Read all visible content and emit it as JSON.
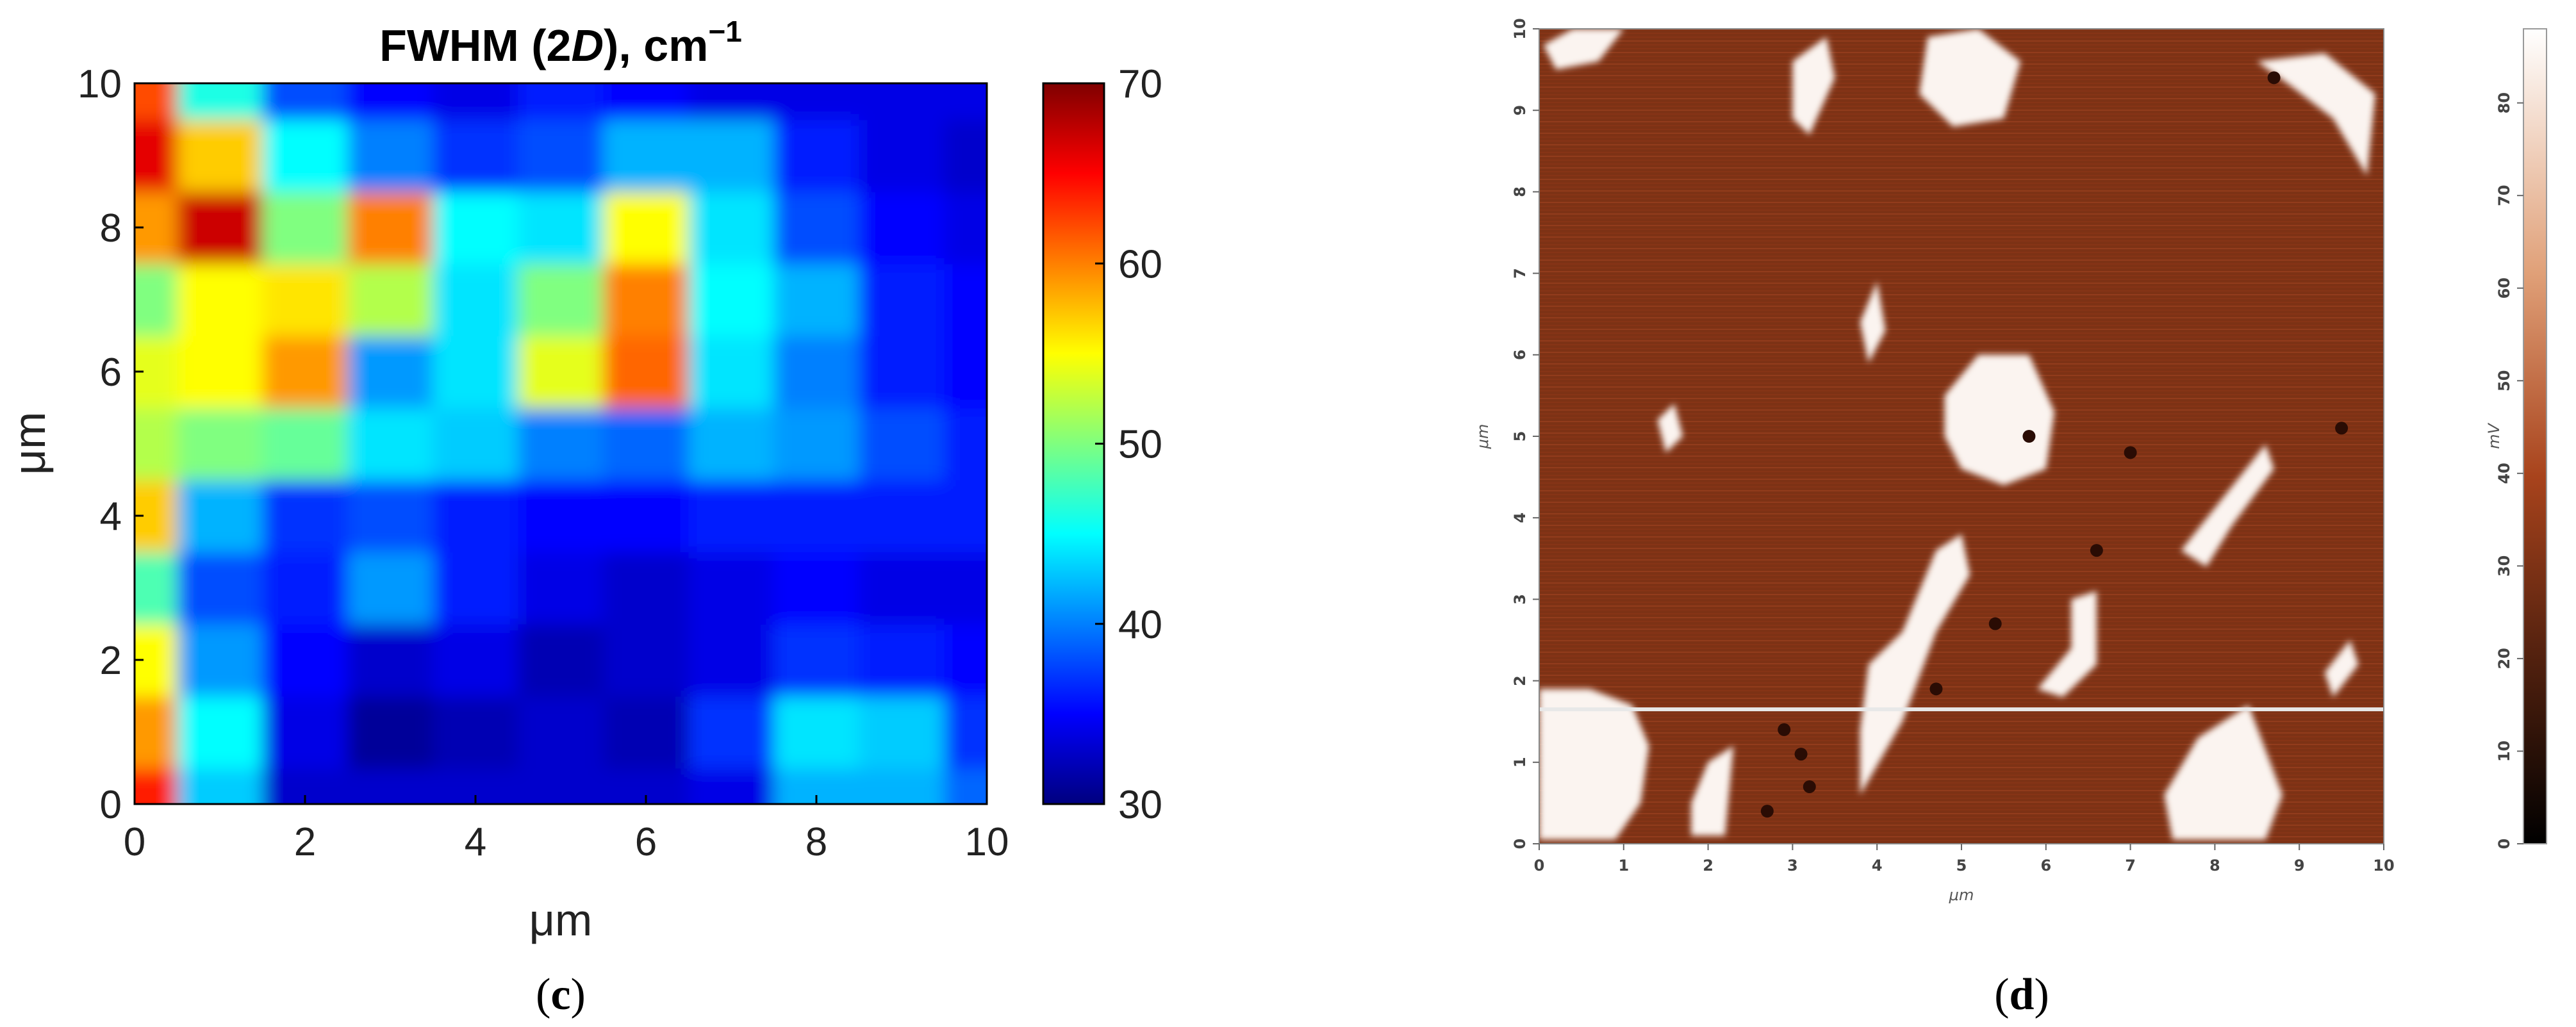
{
  "chart_data": [
    {
      "type": "heatmap",
      "panel": "c",
      "title": "FWHM (2D), cm",
      "title_superscript": "−1",
      "title_parts": {
        "prefix": "FWHM (2",
        "italic": "D",
        "suffix": "), cm",
        "sup": "−1"
      },
      "xlabel": "μm",
      "ylabel": "μm",
      "xlim": [
        0,
        10
      ],
      "ylim": [
        0,
        10
      ],
      "xticks": [
        "0",
        "2",
        "4",
        "6",
        "8",
        "10"
      ],
      "yticks": [
        "0",
        "2",
        "4",
        "6",
        "8",
        "10"
      ],
      "colorbar": {
        "min": 30,
        "max": 70,
        "ticks": [
          "30",
          "40",
          "50",
          "60",
          "70"
        ],
        "colormap": "jet"
      },
      "grid_x": [
        0,
        1,
        2,
        3,
        4,
        5,
        6,
        7,
        8,
        9,
        10
      ],
      "grid_y": [
        0,
        1,
        2,
        3,
        4,
        5,
        6,
        7,
        8,
        9,
        10
      ],
      "z": [
        [
          64,
          43,
          33,
          33,
          33,
          33,
          33,
          34,
          42,
          42,
          39
        ],
        [
          59,
          45,
          34,
          31,
          32,
          33,
          32,
          37,
          44,
          43,
          37
        ],
        [
          55,
          41,
          35,
          33,
          34,
          32,
          33,
          34,
          37,
          36,
          35
        ],
        [
          48,
          38,
          36,
          41,
          36,
          34,
          33,
          34,
          35,
          34,
          34
        ],
        [
          57,
          42,
          37,
          38,
          36,
          35,
          35,
          36,
          36,
          36,
          36
        ],
        [
          52,
          50,
          49,
          44,
          43,
          40,
          39,
          42,
          41,
          38,
          36
        ],
        [
          54,
          55,
          59,
          41,
          44,
          54,
          61,
          44,
          40,
          36,
          35
        ],
        [
          50,
          55,
          56,
          52,
          44,
          50,
          60,
          45,
          42,
          36,
          35
        ],
        [
          59,
          67,
          50,
          60,
          45,
          44,
          55,
          44,
          38,
          35,
          34
        ],
        [
          66,
          57,
          45,
          40,
          37,
          38,
          42,
          42,
          36,
          34,
          33
        ],
        [
          62,
          46,
          38,
          35,
          34,
          36,
          35,
          34,
          34,
          34,
          34
        ]
      ]
    },
    {
      "type": "heatmap",
      "panel": "d",
      "title": "",
      "xlabel": "μm",
      "ylabel": "μm",
      "xlim": [
        0,
        10
      ],
      "ylim": [
        0,
        10
      ],
      "xticks": [
        "0",
        "1",
        "2",
        "3",
        "4",
        "5",
        "6",
        "7",
        "8",
        "9",
        "10"
      ],
      "yticks": [
        "0",
        "1",
        "2",
        "3",
        "4",
        "5",
        "6",
        "7",
        "8",
        "9",
        "10"
      ],
      "colorbar": {
        "min": 0,
        "max": 88,
        "ticks": [
          "0",
          "10",
          "20",
          "30",
          "40",
          "50",
          "60",
          "70",
          "80"
        ],
        "label": "mV",
        "colormap": "copper"
      },
      "background_mV": 30,
      "scan_line_y": 1.65,
      "regions": [
        {
          "shape": "blob",
          "value_mV": 85,
          "points": [
            [
              0,
              1.9
            ],
            [
              0.6,
              1.9
            ],
            [
              1.1,
              1.7
            ],
            [
              1.3,
              1.2
            ],
            [
              1.2,
              0.5
            ],
            [
              0.9,
              0.05
            ],
            [
              0,
              0.05
            ]
          ]
        },
        {
          "shape": "blob",
          "value_mV": 85,
          "points": [
            [
              3.8,
              0.6
            ],
            [
              4.3,
              1.5
            ],
            [
              4.7,
              2.6
            ],
            [
              5.1,
              3.3
            ],
            [
              5.0,
              3.8
            ],
            [
              4.7,
              3.6
            ],
            [
              4.3,
              2.6
            ],
            [
              3.9,
              2.2
            ],
            [
              3.8,
              1.4
            ]
          ]
        },
        {
          "shape": "blob",
          "value_mV": 85,
          "points": [
            [
              4.8,
              5.5
            ],
            [
              5.2,
              6.0
            ],
            [
              5.8,
              6.0
            ],
            [
              6.1,
              5.3
            ],
            [
              6.0,
              4.6
            ],
            [
              5.5,
              4.4
            ],
            [
              5.0,
              4.6
            ],
            [
              4.8,
              5.0
            ]
          ]
        },
        {
          "shape": "blob",
          "value_mV": 85,
          "points": [
            [
              4.6,
              9.9
            ],
            [
              5.2,
              10.0
            ],
            [
              5.7,
              9.6
            ],
            [
              5.5,
              8.9
            ],
            [
              4.9,
              8.8
            ],
            [
              4.5,
              9.2
            ]
          ]
        },
        {
          "shape": "blob",
          "value_mV": 85,
          "points": [
            [
              7.5,
              0.05
            ],
            [
              8.6,
              0.05
            ],
            [
              8.8,
              0.6
            ],
            [
              8.4,
              1.7
            ],
            [
              7.8,
              1.3
            ],
            [
              7.4,
              0.6
            ]
          ]
        },
        {
          "shape": "blob",
          "value_mV": 85,
          "points": [
            [
              7.6,
              3.6
            ],
            [
              8.6,
              4.9
            ],
            [
              8.7,
              4.6
            ],
            [
              8.2,
              3.9
            ],
            [
              7.9,
              3.4
            ]
          ]
        },
        {
          "shape": "blob",
          "value_mV": 85,
          "points": [
            [
              3.0,
              9.6
            ],
            [
              3.4,
              9.9
            ],
            [
              3.5,
              9.4
            ],
            [
              3.2,
              8.7
            ],
            [
              3.0,
              8.9
            ]
          ]
        },
        {
          "shape": "blob",
          "value_mV": 85,
          "points": [
            [
              3.8,
              6.4
            ],
            [
              4.0,
              6.9
            ],
            [
              4.1,
              6.3
            ],
            [
              3.9,
              5.9
            ]
          ]
        },
        {
          "shape": "blob",
          "value_mV": 85,
          "points": [
            [
              1.4,
              5.2
            ],
            [
              1.6,
              5.4
            ],
            [
              1.7,
              5.0
            ],
            [
              1.5,
              4.8
            ]
          ]
        },
        {
          "shape": "blob",
          "value_mV": 85,
          "points": [
            [
              1.8,
              0.1
            ],
            [
              2.2,
              0.1
            ],
            [
              2.3,
              1.2
            ],
            [
              2.0,
              1.0
            ],
            [
              1.8,
              0.5
            ]
          ]
        },
        {
          "shape": "blob",
          "value_mV": 85,
          "points": [
            [
              8.5,
              9.6
            ],
            [
              9.3,
              9.7
            ],
            [
              9.9,
              9.2
            ],
            [
              9.8,
              8.2
            ],
            [
              9.4,
              8.9
            ],
            [
              8.9,
              9.3
            ]
          ]
        },
        {
          "shape": "blob",
          "value_mV": 85,
          "points": [
            [
              0.05,
              9.8
            ],
            [
              0.4,
              10.0
            ],
            [
              1.0,
              10.0
            ],
            [
              0.7,
              9.6
            ],
            [
              0.2,
              9.5
            ]
          ]
        },
        {
          "shape": "blob",
          "value_mV": 85,
          "points": [
            [
              9.3,
              2.1
            ],
            [
              9.6,
              2.5
            ],
            [
              9.7,
              2.2
            ],
            [
              9.4,
              1.8
            ]
          ]
        },
        {
          "shape": "blob",
          "value_mV": 85,
          "points": [
            [
              6.3,
              3.0
            ],
            [
              6.6,
              3.1
            ],
            [
              6.6,
              2.2
            ],
            [
              6.2,
              1.8
            ],
            [
              5.9,
              1.9
            ],
            [
              6.3,
              2.4
            ]
          ]
        }
      ],
      "dark_spots": [
        [
          8.7,
          9.4
        ],
        [
          9.5,
          5.1
        ],
        [
          7.0,
          4.8
        ],
        [
          6.6,
          3.6
        ],
        [
          5.4,
          2.7
        ],
        [
          4.7,
          1.9
        ],
        [
          2.9,
          1.4
        ],
        [
          3.1,
          1.1
        ],
        [
          3.2,
          0.7
        ],
        [
          2.7,
          0.4
        ],
        [
          5.8,
          5.0
        ]
      ]
    }
  ],
  "captions": {
    "c": "c",
    "d": "d"
  }
}
